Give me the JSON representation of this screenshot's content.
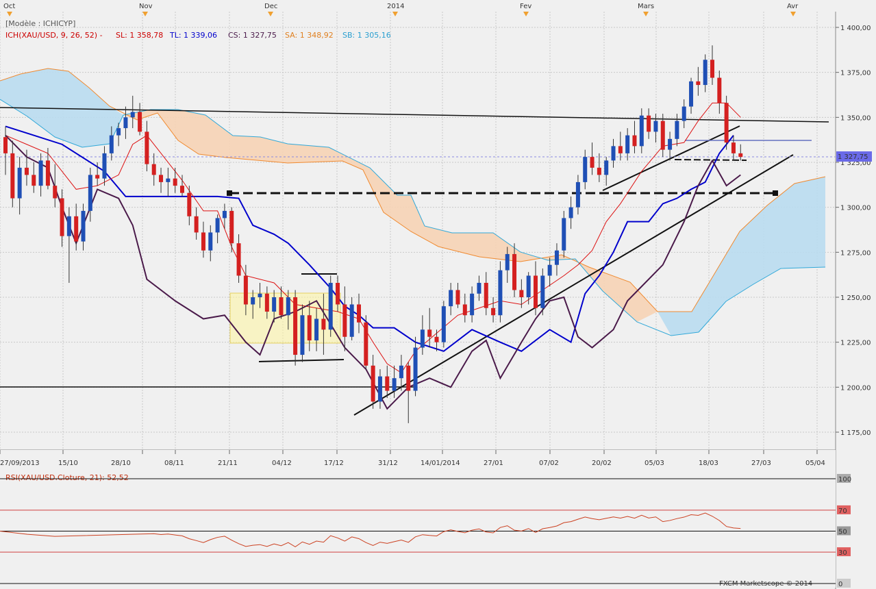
{
  "header": {
    "model": "[Modèle : ICHICYP]",
    "indicator": "ICH(XAU/USD, 9, 26, 52) -",
    "sl": "SL: 1 358,78",
    "tl": "TL: 1 339,06",
    "cs": "CS: 1 327,75",
    "sa": "SA: 1 348,92",
    "sb": "SB: 1 305,16"
  },
  "colors": {
    "bull": "#1f4fb5",
    "bear": "#d42020",
    "kijun": "#0000cc",
    "tenkan": "#dd1111",
    "chikou": "#4a1a4a",
    "cloud_bull": "#b9dcf0",
    "cloud_bear": "#f6d3b5",
    "senkou_a": "#f08a30",
    "senkou_b": "#30a8d8",
    "rsi": "#cc4020"
  },
  "months": [
    "Oct",
    "Nov",
    "Dec",
    "2014",
    "Fev",
    "Mars",
    "Avr"
  ],
  "date_labels": [
    "27/09/2013",
    "15/10",
    "28/10",
    "08/11",
    "21/11",
    "04/12",
    "17/12",
    "31/12",
    "14/01/2014",
    "27/01",
    "07/02",
    "20/02",
    "05/03",
    "18/03",
    "27/03",
    "05/04"
  ],
  "price_ticks": [
    "1 400,00",
    "1 375,00",
    "1 350,00",
    "1 325,00",
    "1 300,00",
    "1 275,00",
    "1 250,00",
    "1 225,00",
    "1 200,00",
    "1 175,00"
  ],
  "current_price": "1 327,75",
  "rsi": {
    "title": "RSI(XAU/USD.Cloture, 21): 52,52",
    "levels": [
      "100",
      "70",
      "50",
      "30",
      "0"
    ]
  },
  "footer": "FXCM Marketscope © 2014",
  "chart_data": {
    "type": "candlestick",
    "y_range": [
      1170,
      1405
    ],
    "candles_ohlc": [
      [
        1339,
        1345,
        1318,
        1330
      ],
      [
        1330,
        1337,
        1300,
        1305
      ],
      [
        1305,
        1328,
        1296,
        1322
      ],
      [
        1322,
        1332,
        1312,
        1318
      ],
      [
        1318,
        1325,
        1308,
        1312
      ],
      [
        1312,
        1330,
        1306,
        1326
      ],
      [
        1326,
        1333,
        1310,
        1312
      ],
      [
        1312,
        1324,
        1300,
        1305
      ],
      [
        1305,
        1310,
        1278,
        1284
      ],
      [
        1284,
        1300,
        1258,
        1295
      ],
      [
        1295,
        1302,
        1276,
        1281
      ],
      [
        1281,
        1302,
        1276,
        1298
      ],
      [
        1298,
        1322,
        1292,
        1318
      ],
      [
        1318,
        1325,
        1312,
        1316
      ],
      [
        1316,
        1334,
        1312,
        1330
      ],
      [
        1330,
        1345,
        1326,
        1340
      ],
      [
        1340,
        1347,
        1334,
        1344
      ],
      [
        1344,
        1356,
        1338,
        1350
      ],
      [
        1350,
        1362,
        1344,
        1353
      ],
      [
        1353,
        1358,
        1340,
        1342
      ],
      [
        1342,
        1348,
        1320,
        1324
      ],
      [
        1324,
        1330,
        1312,
        1318
      ],
      [
        1318,
        1322,
        1308,
        1314
      ],
      [
        1314,
        1322,
        1306,
        1316
      ],
      [
        1316,
        1322,
        1308,
        1312
      ],
      [
        1312,
        1318,
        1306,
        1308
      ],
      [
        1308,
        1312,
        1290,
        1295
      ],
      [
        1295,
        1300,
        1282,
        1286
      ],
      [
        1286,
        1292,
        1272,
        1276
      ],
      [
        1276,
        1290,
        1270,
        1286
      ],
      [
        1286,
        1296,
        1280,
        1294
      ],
      [
        1294,
        1302,
        1288,
        1298
      ],
      [
        1298,
        1300,
        1275,
        1280
      ],
      [
        1280,
        1285,
        1258,
        1262
      ],
      [
        1262,
        1268,
        1240,
        1246
      ],
      [
        1246,
        1254,
        1238,
        1250
      ],
      [
        1250,
        1258,
        1244,
        1252
      ],
      [
        1252,
        1256,
        1238,
        1242
      ],
      [
        1242,
        1254,
        1236,
        1250
      ],
      [
        1250,
        1256,
        1238,
        1240
      ],
      [
        1240,
        1254,
        1232,
        1250
      ],
      [
        1250,
        1254,
        1212,
        1218
      ],
      [
        1218,
        1246,
        1214,
        1240
      ],
      [
        1240,
        1248,
        1220,
        1226
      ],
      [
        1226,
        1244,
        1220,
        1238
      ],
      [
        1238,
        1252,
        1218,
        1232
      ],
      [
        1232,
        1262,
        1228,
        1258
      ],
      [
        1258,
        1262,
        1242,
        1246
      ],
      [
        1246,
        1256,
        1220,
        1228
      ],
      [
        1228,
        1250,
        1226,
        1246
      ],
      [
        1246,
        1252,
        1230,
        1236
      ],
      [
        1236,
        1240,
        1210,
        1212
      ],
      [
        1212,
        1218,
        1188,
        1192
      ],
      [
        1192,
        1210,
        1188,
        1206
      ],
      [
        1206,
        1212,
        1194,
        1198
      ],
      [
        1198,
        1212,
        1194,
        1205
      ],
      [
        1205,
        1218,
        1198,
        1212
      ],
      [
        1212,
        1214,
        1180,
        1198
      ],
      [
        1198,
        1228,
        1195,
        1222
      ],
      [
        1222,
        1240,
        1218,
        1232
      ],
      [
        1232,
        1244,
        1222,
        1228
      ],
      [
        1228,
        1232,
        1220,
        1225
      ],
      [
        1225,
        1248,
        1222,
        1245
      ],
      [
        1245,
        1258,
        1240,
        1254
      ],
      [
        1254,
        1258,
        1244,
        1246
      ],
      [
        1246,
        1252,
        1236,
        1240
      ],
      [
        1240,
        1256,
        1236,
        1252
      ],
      [
        1252,
        1262,
        1248,
        1258
      ],
      [
        1258,
        1264,
        1240,
        1244
      ],
      [
        1244,
        1250,
        1236,
        1240
      ],
      [
        1240,
        1270,
        1236,
        1265
      ],
      [
        1265,
        1278,
        1258,
        1274
      ],
      [
        1274,
        1280,
        1250,
        1254
      ],
      [
        1254,
        1260,
        1244,
        1250
      ],
      [
        1250,
        1264,
        1246,
        1262
      ],
      [
        1262,
        1270,
        1240,
        1244
      ],
      [
        1244,
        1266,
        1240,
        1262
      ],
      [
        1262,
        1272,
        1256,
        1268
      ],
      [
        1268,
        1280,
        1262,
        1276
      ],
      [
        1276,
        1298,
        1272,
        1294
      ],
      [
        1294,
        1306,
        1288,
        1300
      ],
      [
        1300,
        1318,
        1296,
        1314
      ],
      [
        1314,
        1332,
        1310,
        1328
      ],
      [
        1328,
        1336,
        1318,
        1322
      ],
      [
        1322,
        1330,
        1314,
        1318
      ],
      [
        1318,
        1328,
        1312,
        1326
      ],
      [
        1326,
        1338,
        1322,
        1334
      ],
      [
        1334,
        1342,
        1326,
        1330
      ],
      [
        1330,
        1344,
        1326,
        1340
      ],
      [
        1340,
        1348,
        1330,
        1334
      ],
      [
        1334,
        1355,
        1330,
        1351
      ],
      [
        1351,
        1355,
        1338,
        1342
      ],
      [
        1342,
        1352,
        1336,
        1348
      ],
      [
        1348,
        1352,
        1328,
        1332
      ],
      [
        1332,
        1342,
        1326,
        1338
      ],
      [
        1338,
        1352,
        1334,
        1348
      ],
      [
        1348,
        1360,
        1344,
        1356
      ],
      [
        1356,
        1372,
        1352,
        1370
      ],
      [
        1370,
        1378,
        1362,
        1368
      ],
      [
        1368,
        1385,
        1364,
        1382
      ],
      [
        1382,
        1390,
        1368,
        1372
      ],
      [
        1372,
        1376,
        1352,
        1358
      ],
      [
        1358,
        1362,
        1332,
        1336
      ],
      [
        1336,
        1340,
        1326,
        1330
      ],
      [
        1330,
        1335,
        1326,
        1328
      ]
    ],
    "kijun": [
      [
        0,
        1345
      ],
      [
        4,
        1340
      ],
      [
        8,
        1335
      ],
      [
        14,
        1320
      ],
      [
        17,
        1306
      ],
      [
        22,
        1306
      ],
      [
        30,
        1306
      ],
      [
        33,
        1305
      ],
      [
        35,
        1290
      ],
      [
        38,
        1285
      ],
      [
        40,
        1280
      ],
      [
        43,
        1268
      ],
      [
        46,
        1255
      ],
      [
        48,
        1245
      ],
      [
        50,
        1240
      ],
      [
        52,
        1233
      ],
      [
        55,
        1233
      ],
      [
        58,
        1225
      ],
      [
        62,
        1220
      ],
      [
        66,
        1232
      ],
      [
        70,
        1225
      ],
      [
        73,
        1220
      ],
      [
        77,
        1232
      ],
      [
        80,
        1225
      ],
      [
        82,
        1252
      ],
      [
        84,
        1262
      ],
      [
        86,
        1275
      ],
      [
        88,
        1292
      ],
      [
        91,
        1292
      ],
      [
        93,
        1302
      ],
      [
        95,
        1305
      ],
      [
        97,
        1310
      ],
      [
        99,
        1314
      ],
      [
        101,
        1330
      ],
      [
        103,
        1340
      ]
    ],
    "tenkan": [
      [
        0,
        1340
      ],
      [
        3,
        1335
      ],
      [
        6,
        1330
      ],
      [
        10,
        1310
      ],
      [
        13,
        1312
      ],
      [
        16,
        1318
      ],
      [
        18,
        1335
      ],
      [
        20,
        1340
      ],
      [
        22,
        1330
      ],
      [
        25,
        1315
      ],
      [
        28,
        1298
      ],
      [
        30,
        1298
      ],
      [
        32,
        1278
      ],
      [
        34,
        1262
      ],
      [
        36,
        1260
      ],
      [
        38,
        1258
      ],
      [
        41,
        1246
      ],
      [
        44,
        1244
      ],
      [
        47,
        1242
      ],
      [
        50,
        1238
      ],
      [
        52,
        1225
      ],
      [
        54,
        1213
      ],
      [
        56,
        1208
      ],
      [
        58,
        1220
      ],
      [
        61,
        1230
      ],
      [
        64,
        1240
      ],
      [
        67,
        1244
      ],
      [
        70,
        1248
      ],
      [
        73,
        1246
      ],
      [
        76,
        1254
      ],
      [
        79,
        1262
      ],
      [
        81,
        1268
      ],
      [
        83,
        1276
      ],
      [
        85,
        1292
      ],
      [
        87,
        1302
      ],
      [
        90,
        1320
      ],
      [
        93,
        1334
      ],
      [
        96,
        1336
      ],
      [
        98,
        1348
      ],
      [
        100,
        1358
      ],
      [
        102,
        1358
      ],
      [
        104,
        1350
      ]
    ],
    "chikou": [
      [
        0,
        1340
      ],
      [
        3,
        1328
      ],
      [
        6,
        1322
      ],
      [
        8,
        1300
      ],
      [
        10,
        1280
      ],
      [
        13,
        1310
      ],
      [
        16,
        1305
      ],
      [
        18,
        1290
      ],
      [
        20,
        1260
      ],
      [
        24,
        1248
      ],
      [
        28,
        1238
      ],
      [
        31,
        1240
      ],
      [
        34,
        1225
      ],
      [
        36,
        1218
      ],
      [
        38,
        1238
      ],
      [
        41,
        1242
      ],
      [
        44,
        1248
      ],
      [
        46,
        1235
      ],
      [
        48,
        1222
      ],
      [
        51,
        1210
      ],
      [
        54,
        1188
      ],
      [
        57,
        1200
      ],
      [
        60,
        1205
      ],
      [
        63,
        1200
      ],
      [
        66,
        1220
      ],
      [
        68,
        1226
      ],
      [
        70,
        1205
      ],
      [
        73,
        1225
      ],
      [
        75,
        1238
      ],
      [
        77,
        1248
      ],
      [
        79,
        1250
      ],
      [
        81,
        1228
      ],
      [
        83,
        1222
      ],
      [
        86,
        1232
      ],
      [
        88,
        1248
      ],
      [
        90,
        1256
      ],
      [
        93,
        1268
      ],
      [
        96,
        1292
      ],
      [
        98,
        1312
      ],
      [
        100,
        1326
      ],
      [
        102,
        1312
      ],
      [
        104,
        1318
      ]
    ]
  }
}
